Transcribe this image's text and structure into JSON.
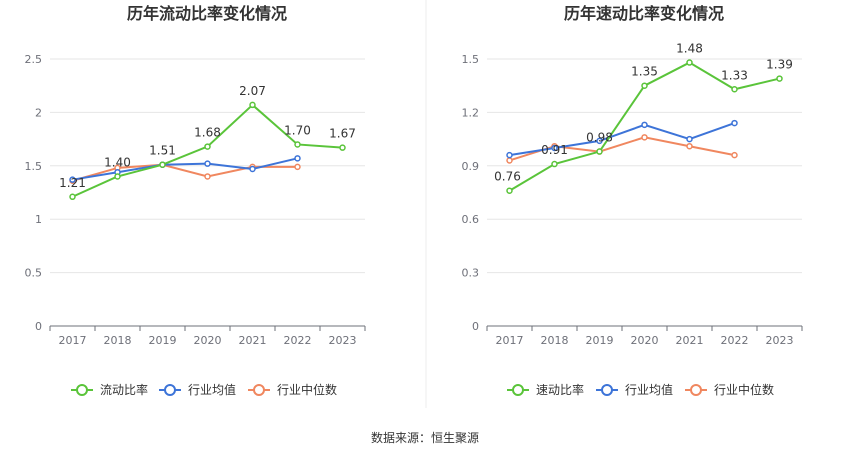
{
  "source": "数据来源：恒生聚源",
  "chart_data": [
    {
      "type": "line",
      "title": "历年流动比率变化情况",
      "categories": [
        "2017",
        "2018",
        "2019",
        "2020",
        "2021",
        "2022",
        "2023"
      ],
      "ylim": [
        0,
        2.5
      ],
      "yticks": [
        "0",
        "0.5",
        "1",
        "1.5",
        "2",
        "2.5"
      ],
      "grid": true,
      "legend": "bottom",
      "series": [
        {
          "name": "流动比率",
          "color": "#5ac43a",
          "values": [
            1.21,
            1.4,
            1.51,
            1.68,
            2.07,
            1.7,
            1.67
          ],
          "labels": [
            "1.21",
            "1.40",
            "1.51",
            "1.68",
            "2.07",
            "1.70",
            "1.67"
          ]
        },
        {
          "name": "行业均值",
          "color": "#3d74d8",
          "values": [
            1.37,
            1.44,
            1.51,
            1.52,
            1.47,
            1.57,
            null
          ]
        },
        {
          "name": "行业中位数",
          "color": "#f0875f",
          "values": [
            1.36,
            1.48,
            1.51,
            1.4,
            1.49,
            1.49,
            null
          ]
        }
      ]
    },
    {
      "type": "line",
      "title": "历年速动比率变化情况",
      "categories": [
        "2017",
        "2018",
        "2019",
        "2020",
        "2021",
        "2022",
        "2023"
      ],
      "ylim": [
        0,
        1.5
      ],
      "yticks": [
        "0",
        "0.3",
        "0.6",
        "0.9",
        "1.2",
        "1.5"
      ],
      "grid": true,
      "legend": "bottom",
      "series": [
        {
          "name": "速动比率",
          "color": "#5ac43a",
          "values": [
            0.76,
            0.91,
            0.98,
            1.35,
            1.48,
            1.33,
            1.39
          ],
          "labels": [
            "0.76",
            "0.91",
            "0.98",
            "1.35",
            "1.48",
            "1.33",
            "1.39"
          ]
        },
        {
          "name": "行业均值",
          "color": "#3d74d8",
          "values": [
            0.96,
            1.0,
            1.04,
            1.13,
            1.05,
            1.14,
            null
          ]
        },
        {
          "name": "行业中位数",
          "color": "#f0875f",
          "values": [
            0.93,
            1.01,
            0.98,
            1.06,
            1.01,
            0.96,
            null
          ]
        }
      ]
    }
  ]
}
